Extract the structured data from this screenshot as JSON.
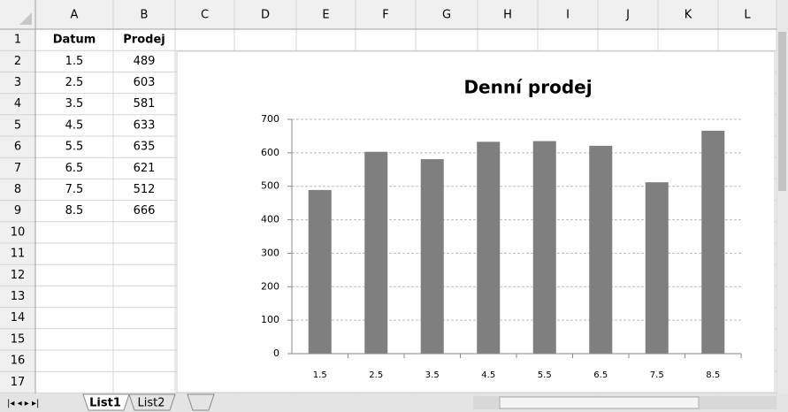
{
  "columns": [
    "A",
    "B",
    "C",
    "D",
    "E",
    "F",
    "G",
    "H",
    "I",
    "J",
    "K",
    "L"
  ],
  "row_numbers": [
    1,
    2,
    3,
    4,
    5,
    6,
    7,
    8,
    9,
    10,
    11,
    12,
    13,
    14,
    15,
    16,
    17
  ],
  "cells": [
    [
      "Datum",
      "Prodej"
    ],
    [
      "1.5",
      489
    ],
    [
      "2.5",
      603
    ],
    [
      "3.5",
      581
    ],
    [
      "4.5",
      633
    ],
    [
      "5.5",
      635
    ],
    [
      "6.5",
      621
    ],
    [
      "7.5",
      512
    ],
    [
      "8.5",
      666
    ]
  ],
  "sheet_tabs": [
    "List1",
    "List2"
  ],
  "chart_data": {
    "type": "bar",
    "title": "Denní prodej",
    "categories": [
      "1.5",
      "2.5",
      "3.5",
      "4.5",
      "5.5",
      "6.5",
      "7.5",
      "8.5"
    ],
    "values": [
      489,
      603,
      581,
      633,
      635,
      621,
      512,
      666
    ],
    "color": "#7f7f7f",
    "ylim": [
      0,
      700
    ],
    "yticks": [
      0,
      100,
      200,
      300,
      400,
      500,
      600,
      700
    ],
    "grid": true
  }
}
